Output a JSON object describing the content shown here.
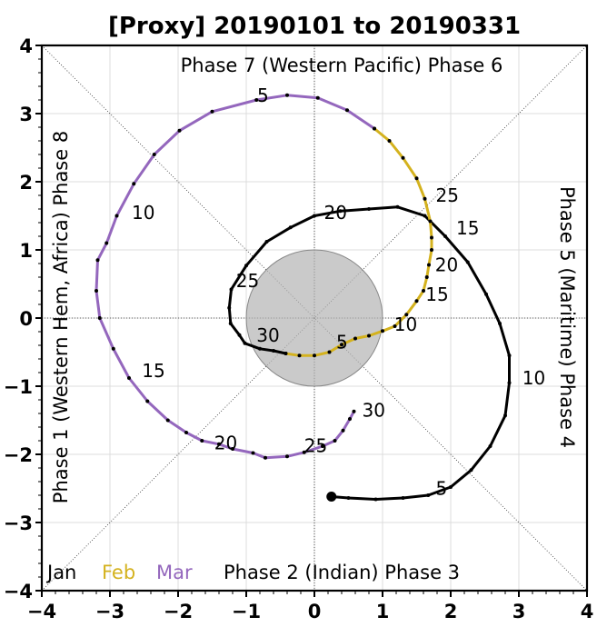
{
  "chart_data": {
    "type": "line",
    "title": "[Proxy] 20190101 to 20190331",
    "xlim": [
      -4,
      4
    ],
    "ylim": [
      -4,
      4
    ],
    "xticks": [
      "−4",
      "−3",
      "−2",
      "−1",
      "0",
      "1",
      "2",
      "3",
      "4"
    ],
    "yticks": [
      "−4",
      "−3",
      "−2",
      "−1",
      "0",
      "1",
      "2",
      "3",
      "4"
    ],
    "grid": true,
    "unit_circle_radius": 1,
    "phase_labels": {
      "top": "Phase 7 (Western Pacific) Phase 6",
      "bottom": "Phase 2 (Indian) Phase 3",
      "left": "Phase 1 (Western Hem, Africa) Phase 8",
      "right": "Phase 5 (Maritime) Phase 4"
    },
    "legend": [
      {
        "label": "Jan",
        "color": "#000000"
      },
      {
        "label": "Feb",
        "color": "#d4b21e"
      },
      {
        "label": "Mar",
        "color": "#9467bd"
      }
    ],
    "series": [
      {
        "name": "Jan",
        "color": "#000000",
        "points": [
          [
            0.25,
            -2.62
          ],
          [
            0.5,
            -2.64
          ],
          [
            0.9,
            -2.66
          ],
          [
            1.3,
            -2.64
          ],
          [
            1.67,
            -2.6
          ],
          [
            2.0,
            -2.48
          ],
          [
            2.3,
            -2.23
          ],
          [
            2.58,
            -1.88
          ],
          [
            2.8,
            -1.43
          ],
          [
            2.86,
            -0.95
          ],
          [
            2.86,
            -0.55
          ],
          [
            2.72,
            -0.08
          ],
          [
            2.52,
            0.35
          ],
          [
            2.25,
            0.82
          ],
          [
            1.92,
            1.2
          ],
          [
            1.62,
            1.5
          ],
          [
            1.22,
            1.63
          ],
          [
            0.8,
            1.6
          ],
          [
            0.38,
            1.57
          ],
          [
            0.0,
            1.5
          ],
          [
            -0.35,
            1.33
          ],
          [
            -0.7,
            1.12
          ],
          [
            -1.0,
            0.77
          ],
          [
            -1.22,
            0.42
          ],
          [
            -1.25,
            0.15
          ],
          [
            -1.23,
            -0.08
          ],
          [
            -1.1,
            -0.25
          ],
          [
            -1.02,
            -0.37
          ],
          [
            -0.8,
            -0.45
          ],
          [
            -0.6,
            -0.48
          ],
          [
            -0.42,
            -0.52
          ]
        ],
        "labels": [
          {
            "day": "5",
            "at": [
              1.78,
              -2.5
            ]
          },
          {
            "day": "10",
            "at": [
              3.05,
              -0.88
            ]
          },
          {
            "day": "15",
            "at": [
              2.08,
              1.32
            ]
          },
          {
            "day": "20",
            "at": [
              0.14,
              1.55
            ]
          },
          {
            "day": "25",
            "at": [
              -1.15,
              0.55
            ]
          },
          {
            "day": "30",
            "at": [
              -0.85,
              -0.25
            ]
          }
        ]
      },
      {
        "name": "Feb",
        "color": "#d4b21e",
        "points": [
          [
            -0.42,
            -0.52
          ],
          [
            -0.22,
            -0.55
          ],
          [
            0.0,
            -0.55
          ],
          [
            0.22,
            -0.5
          ],
          [
            0.4,
            -0.39
          ],
          [
            0.6,
            -0.3
          ],
          [
            0.8,
            -0.26
          ],
          [
            1.0,
            -0.19
          ],
          [
            1.18,
            -0.12
          ],
          [
            1.35,
            0.05
          ],
          [
            1.5,
            0.25
          ],
          [
            1.6,
            0.4
          ],
          [
            1.65,
            0.6
          ],
          [
            1.68,
            0.78
          ],
          [
            1.72,
            1.0
          ],
          [
            1.72,
            1.18
          ],
          [
            1.7,
            1.42
          ],
          [
            1.62,
            1.75
          ],
          [
            1.5,
            2.05
          ],
          [
            1.3,
            2.35
          ],
          [
            1.1,
            2.6
          ],
          [
            0.88,
            2.78
          ]
        ],
        "labels": [
          {
            "day": "5",
            "at": [
              0.32,
              -0.35
            ]
          },
          {
            "day": "10",
            "at": [
              1.17,
              -0.09
            ]
          },
          {
            "day": "15",
            "at": [
              1.63,
              0.35
            ]
          },
          {
            "day": "20",
            "at": [
              1.77,
              0.78
            ]
          },
          {
            "day": "25",
            "at": [
              1.78,
              1.8
            ]
          }
        ]
      },
      {
        "name": "Mar",
        "color": "#9467bd",
        "points": [
          [
            0.88,
            2.78
          ],
          [
            0.48,
            3.05
          ],
          [
            0.05,
            3.23
          ],
          [
            -0.4,
            3.27
          ],
          [
            -0.85,
            3.2
          ],
          [
            -1.5,
            3.03
          ],
          [
            -1.98,
            2.75
          ],
          [
            -2.35,
            2.4
          ],
          [
            -2.65,
            1.97
          ],
          [
            -2.9,
            1.5
          ],
          [
            -3.05,
            1.1
          ],
          [
            -3.18,
            0.85
          ],
          [
            -3.2,
            0.4
          ],
          [
            -3.15,
            0.0
          ],
          [
            -2.95,
            -0.45
          ],
          [
            -2.72,
            -0.88
          ],
          [
            -2.45,
            -1.22
          ],
          [
            -2.15,
            -1.5
          ],
          [
            -1.88,
            -1.68
          ],
          [
            -1.65,
            -1.8
          ],
          [
            -1.4,
            -1.85
          ],
          [
            -1.2,
            -1.92
          ],
          [
            -0.9,
            -1.98
          ],
          [
            -0.72,
            -2.05
          ],
          [
            -0.4,
            -2.03
          ],
          [
            -0.15,
            -1.97
          ],
          [
            0.12,
            -1.88
          ],
          [
            0.3,
            -1.8
          ],
          [
            0.42,
            -1.65
          ],
          [
            0.52,
            -1.48
          ],
          [
            0.58,
            -1.37
          ]
        ],
        "labels": [
          {
            "day": "5",
            "at": [
              -0.84,
              3.27
            ]
          },
          {
            "day": "10",
            "at": [
              -2.68,
              1.55
            ]
          },
          {
            "day": "15",
            "at": [
              -2.53,
              -0.77
            ]
          },
          {
            "day": "20",
            "at": [
              -1.47,
              -1.83
            ]
          },
          {
            "day": "25",
            "at": [
              -0.15,
              -1.87
            ]
          },
          {
            "day": "30",
            "at": [
              0.7,
              -1.35
            ]
          }
        ]
      }
    ]
  }
}
